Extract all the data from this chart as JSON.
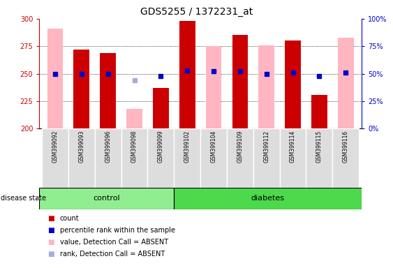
{
  "title": "GDS5255 / 1372231_at",
  "samples": [
    "GSM399092",
    "GSM399093",
    "GSM399096",
    "GSM399098",
    "GSM399099",
    "GSM399102",
    "GSM399104",
    "GSM399109",
    "GSM399112",
    "GSM399114",
    "GSM399115",
    "GSM399116"
  ],
  "groups": [
    "control",
    "control",
    "control",
    "control",
    "control",
    "diabetes",
    "diabetes",
    "diabetes",
    "diabetes",
    "diabetes",
    "diabetes",
    "diabetes"
  ],
  "red_bars": [
    null,
    272,
    269,
    null,
    237,
    298,
    null,
    285,
    null,
    280,
    231,
    null
  ],
  "pink_bars": [
    291,
    null,
    null,
    218,
    null,
    null,
    275,
    null,
    276,
    null,
    null,
    283
  ],
  "blue_dots_pct": [
    50,
    50,
    50,
    null,
    48,
    53,
    52,
    52,
    50,
    51,
    48,
    51
  ],
  "light_blue_dots_pct": [
    null,
    null,
    null,
    44,
    null,
    null,
    null,
    null,
    null,
    null,
    null,
    null
  ],
  "ylim": [
    200,
    300
  ],
  "yticks": [
    200,
    225,
    250,
    275,
    300
  ],
  "right_yticks": [
    0,
    25,
    50,
    75,
    100
  ],
  "right_ylim": [
    0,
    100
  ],
  "bar_width": 0.6,
  "control_color": "#90EE90",
  "diabetes_color": "#4CD94C",
  "left_axis_color": "#CC0000",
  "right_axis_color": "#0000CC",
  "legend_items": [
    {
      "label": "count",
      "color": "#CC0000"
    },
    {
      "label": "percentile rank within the sample",
      "color": "#0000CC"
    },
    {
      "label": "value, Detection Call = ABSENT",
      "color": "#FFB6C1"
    },
    {
      "label": "rank, Detection Call = ABSENT",
      "color": "#AAAADD"
    }
  ]
}
